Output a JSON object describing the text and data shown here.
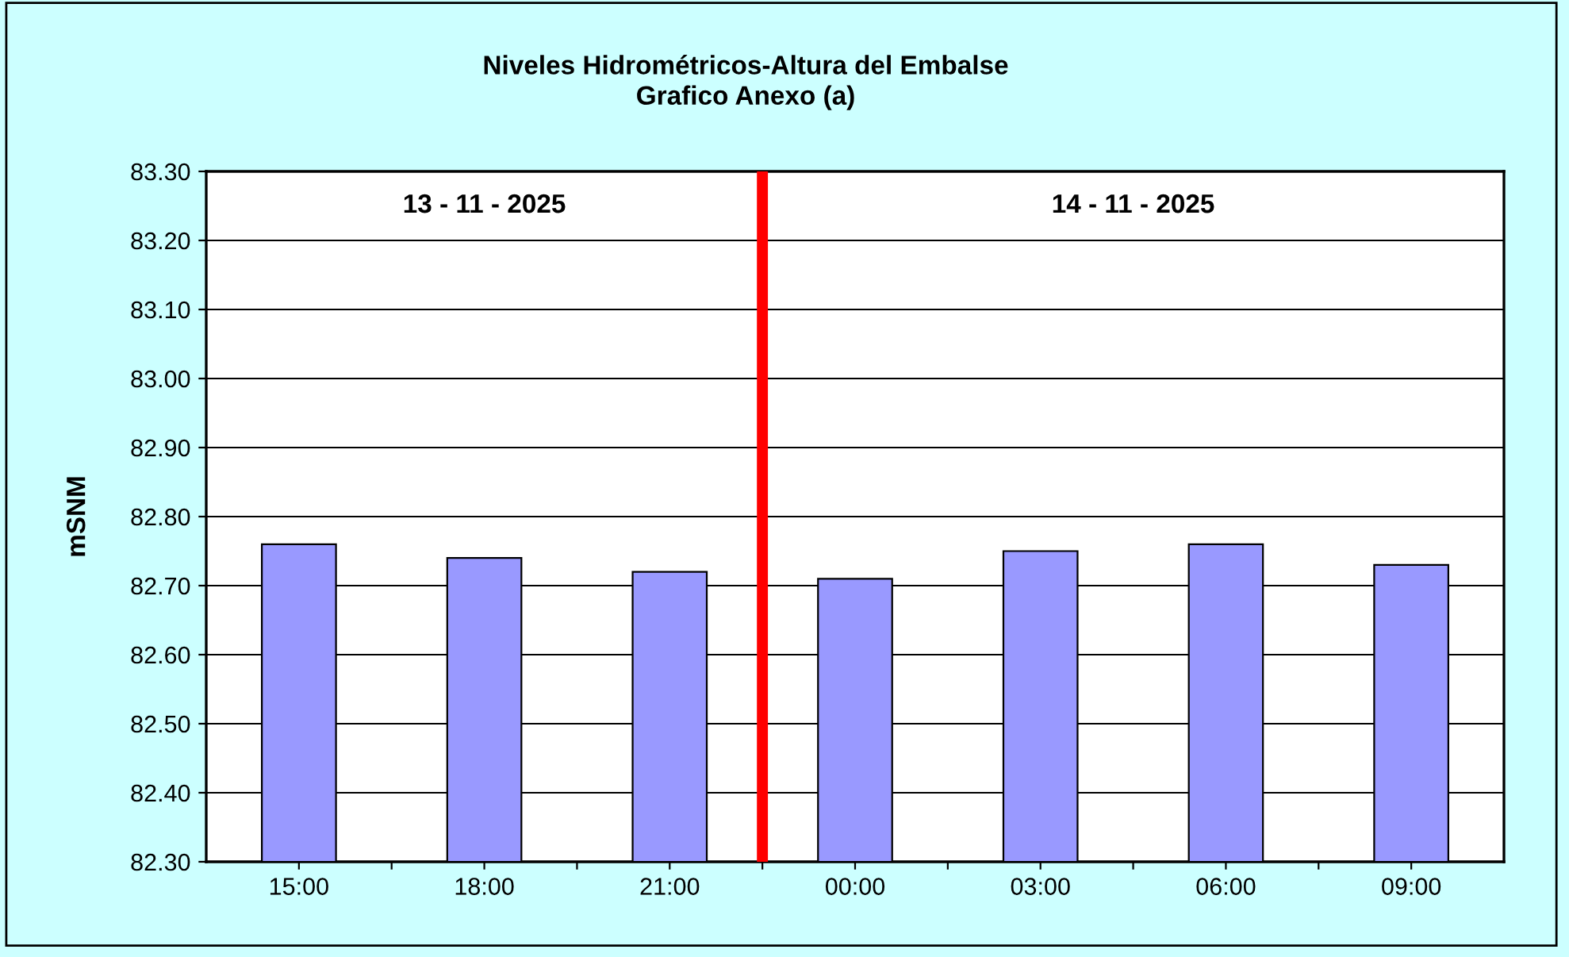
{
  "chart_data": {
    "type": "bar",
    "title": "Niveles Hidrométricos-Altura del Embalse\nGrafico Anexo (a)",
    "ylabel": "mSNM",
    "x": [
      "2025-11-13T15:00",
      "2025-11-13T18:00",
      "2025-11-13T21:00",
      "2025-11-14T00:00",
      "2025-11-14T03:00",
      "2025-11-14T06:00",
      "2025-11-14T09:00"
    ],
    "values": [
      82.76,
      82.74,
      82.72,
      82.71,
      82.75,
      82.76,
      82.73
    ],
    "color": "#9999ff",
    "xlim": [
      "2025-11-13T13:30",
      "2025-11-14T10:30"
    ],
    "xticks": [
      {
        "value": "2025-11-13T15:00",
        "label": "15:00"
      },
      {
        "value": "2025-11-13T18:00",
        "label": "18:00"
      },
      {
        "value": "2025-11-13T21:00",
        "label": "21:00"
      },
      {
        "value": "2025-11-14T00:00",
        "label": "00:00"
      },
      {
        "value": "2025-11-14T03:00",
        "label": "03:00"
      },
      {
        "value": "2025-11-14T06:00",
        "label": "06:00"
      },
      {
        "value": "2025-11-14T09:00",
        "label": "09:00"
      },
      {
        "value": "2025-11-13T16:30",
        "label": null
      },
      {
        "value": "2025-11-13T19:30",
        "label": null
      },
      {
        "value": "2025-11-13T22:30",
        "label": null
      },
      {
        "value": "2025-11-14T01:30",
        "label": null
      },
      {
        "value": "2025-11-14T04:30",
        "label": null
      },
      {
        "value": "2025-11-14T07:30",
        "label": null
      }
    ],
    "ylim": [
      82.3,
      83.3
    ],
    "yticks": [
      {
        "value": 82.3,
        "label": "82.30"
      },
      {
        "value": 82.4,
        "label": "82.40"
      },
      {
        "value": 82.5,
        "label": "82.50"
      },
      {
        "value": 82.6,
        "label": "82.60"
      },
      {
        "value": 82.7,
        "label": "82.70"
      },
      {
        "value": 82.8,
        "label": "82.80"
      },
      {
        "value": 82.9,
        "label": "82.90"
      },
      {
        "value": 83.0,
        "label": "83.00"
      },
      {
        "value": 83.1,
        "label": "83.10"
      },
      {
        "value": 83.2,
        "label": "83.20"
      },
      {
        "value": 83.3,
        "label": "83.30"
      }
    ],
    "grid": "y",
    "ref_lines": [
      {
        "axis": "x",
        "value": "2025-11-13T22:30",
        "color": "#ff0000",
        "line_style": "solid"
      }
    ],
    "annotations": [
      "13 - 11 - 2025",
      "14 - 11 - 2025"
    ]
  }
}
